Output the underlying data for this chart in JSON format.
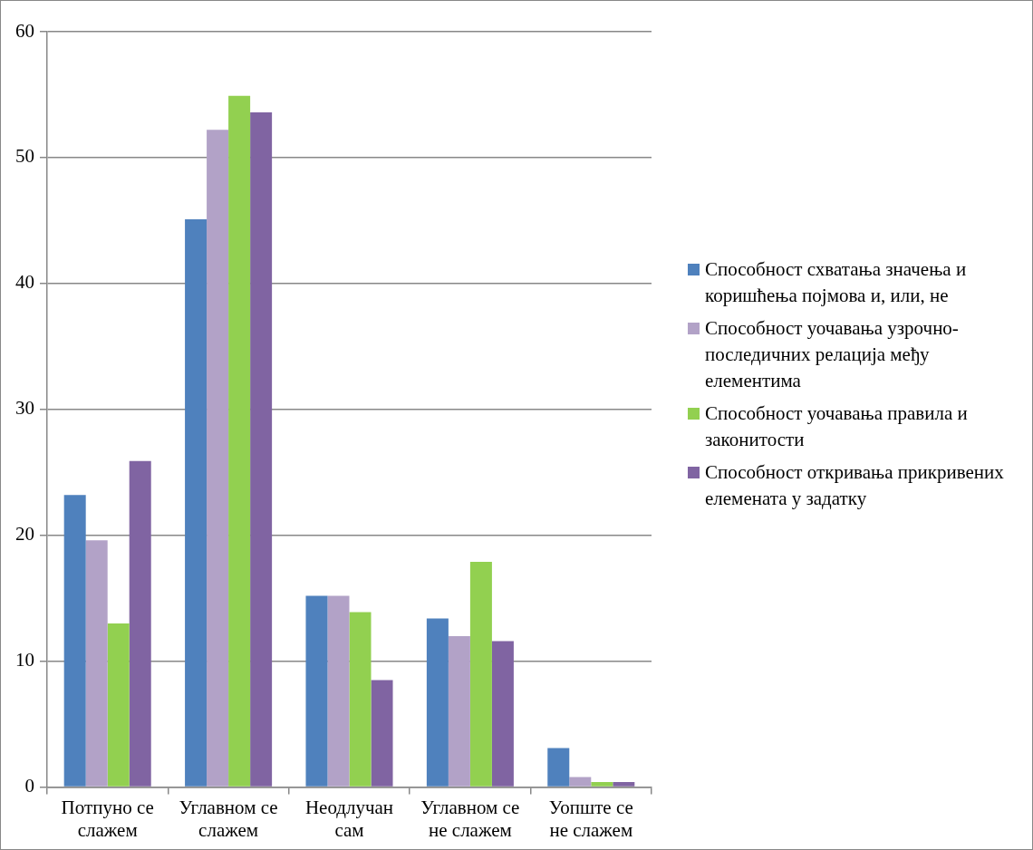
{
  "chart_data": {
    "type": "bar",
    "categories": [
      "Потпуно се слажем",
      "Углавном се слажем",
      "Неодлучан сам",
      "Углавном се не слажем",
      "Уопште се не слажем"
    ],
    "series": [
      {
        "name": "Способност схватања значења и коришћења појмова и, или, не",
        "color": "#4f81bd",
        "values": [
          23.2,
          45.1,
          15.2,
          13.4,
          3.1
        ]
      },
      {
        "name": "Способност уочавања узрочно-последичних релација међу елементима",
        "color": "#b2a2c7",
        "values": [
          19.6,
          52.2,
          15.2,
          12.0,
          0.8
        ]
      },
      {
        "name": "Способност уочавања правила и законитости",
        "color": "#92d050",
        "values": [
          13.0,
          54.9,
          13.9,
          17.9,
          0.4
        ]
      },
      {
        "name": "Способност откривања прикривених елемената у задатку",
        "color": "#8064a2",
        "values": [
          25.9,
          53.6,
          8.5,
          11.6,
          0.4
        ]
      }
    ],
    "ylim": [
      0,
      60
    ],
    "yticks": [
      0,
      10,
      20,
      30,
      40,
      50,
      60
    ],
    "grid": "y",
    "legend": "right"
  }
}
